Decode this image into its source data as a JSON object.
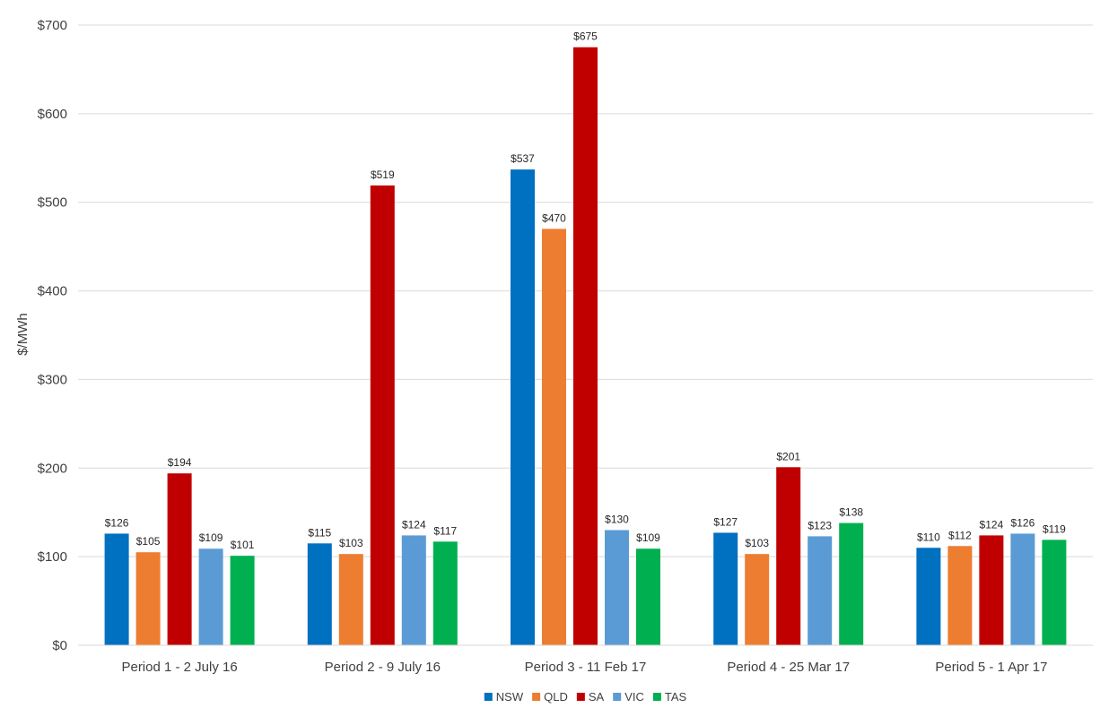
{
  "chart_data": {
    "type": "bar",
    "title": "",
    "xlabel": "",
    "ylabel": "$/MWh",
    "ylim": [
      0,
      700
    ],
    "yticks": [
      0,
      100,
      200,
      300,
      400,
      500,
      600,
      700
    ],
    "ytick_labels": [
      "$0",
      "$100",
      "$200",
      "$300",
      "$400",
      "$500",
      "$600",
      "$700"
    ],
    "grid": "horizontal",
    "legend_position": "bottom",
    "value_prefix": "$",
    "categories": [
      "Period 1 - 2 July 16",
      "Period 2 - 9 July 16",
      "Period 3 - 11 Feb 17",
      "Period 4 - 25 Mar 17",
      "Period 5 - 1 Apr 17"
    ],
    "series": [
      {
        "name": "NSW",
        "color": "#0070C0",
        "values": [
          126,
          115,
          537,
          127,
          110
        ]
      },
      {
        "name": "QLD",
        "color": "#ED7D31",
        "values": [
          105,
          103,
          470,
          103,
          112
        ]
      },
      {
        "name": "SA",
        "color": "#C00000",
        "values": [
          194,
          519,
          675,
          201,
          124
        ]
      },
      {
        "name": "VIC",
        "color": "#5B9BD5",
        "values": [
          109,
          124,
          130,
          123,
          126
        ]
      },
      {
        "name": "TAS",
        "color": "#00B050",
        "values": [
          101,
          117,
          109,
          138,
          119
        ]
      }
    ]
  }
}
